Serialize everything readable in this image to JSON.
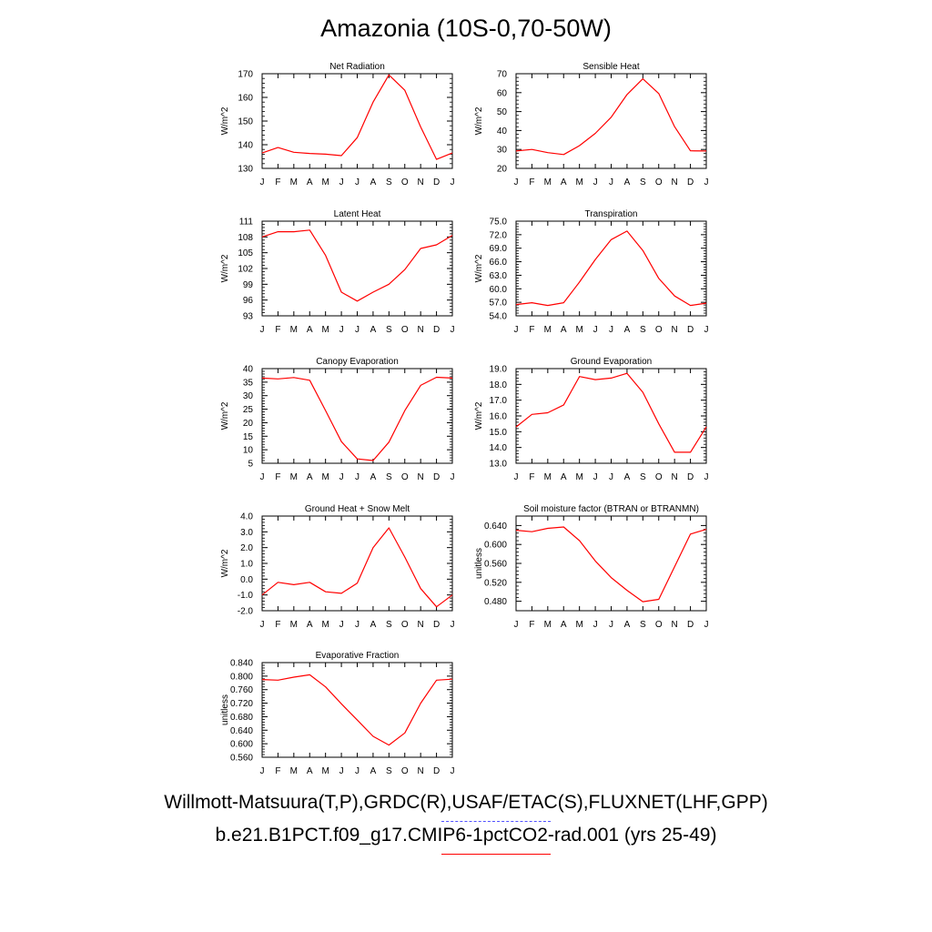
{
  "figure": {
    "title": "Amazonia (10S-0,70-50W)",
    "captions": {
      "obs": "Willmott-Matsuura(T,P),GRDC(R),USAF/ETAC(S),FLUXNET(LHF,GPP)",
      "model": "b.e21.B1PCT.f09_g17.CMIP6-1pctCO2-rad.001 (yrs 25-49)"
    },
    "colors": {
      "model_line": "#ff0000",
      "obs_line": "#5050ff",
      "axis": "#000000"
    }
  },
  "chart_data": [
    {
      "type": "line",
      "title": "Net Radiation",
      "ylabel": "W/m^2",
      "xlabel": "",
      "x": [
        "J",
        "F",
        "M",
        "A",
        "M",
        "J",
        "J",
        "A",
        "S",
        "O",
        "N",
        "D",
        "J"
      ],
      "ylim": [
        130,
        170
      ],
      "yticks": [
        "130",
        "140",
        "150",
        "160",
        "170"
      ],
      "series": [
        {
          "values": [
            136.5,
            138.8,
            136.8,
            136.3,
            136.0,
            135.4,
            143.0,
            158.0,
            169.5,
            163.0,
            147.5,
            133.8,
            136.5
          ]
        }
      ]
    },
    {
      "type": "line",
      "title": "Sensible Heat",
      "ylabel": "W/m^2",
      "xlabel": "",
      "x": [
        "J",
        "F",
        "M",
        "A",
        "M",
        "J",
        "J",
        "A",
        "S",
        "O",
        "N",
        "D",
        "J"
      ],
      "ylim": [
        20,
        70
      ],
      "yticks": [
        "20",
        "30",
        "40",
        "50",
        "60",
        "70"
      ],
      "series": [
        {
          "values": [
            29.2,
            30.0,
            28.3,
            27.3,
            32.0,
            38.5,
            47.0,
            59.0,
            67.3,
            59.5,
            42.0,
            29.3,
            29.2
          ]
        }
      ]
    },
    {
      "type": "line",
      "title": "Latent Heat",
      "ylabel": "W/m^2",
      "xlabel": "",
      "x": [
        "J",
        "F",
        "M",
        "A",
        "M",
        "J",
        "J",
        "A",
        "S",
        "O",
        "N",
        "D",
        "J"
      ],
      "ylim": [
        93,
        111
      ],
      "yticks": [
        "93",
        "96",
        "99",
        "102",
        "105",
        "108",
        "111"
      ],
      "series": [
        {
          "values": [
            108.0,
            109.0,
            109.0,
            109.3,
            104.5,
            97.5,
            95.8,
            97.5,
            99.0,
            101.8,
            105.8,
            106.5,
            108.3
          ]
        }
      ]
    },
    {
      "type": "line",
      "title": "Transpiration",
      "ylabel": "W/m^2",
      "xlabel": "",
      "x": [
        "J",
        "F",
        "M",
        "A",
        "M",
        "J",
        "J",
        "A",
        "S",
        "O",
        "N",
        "D",
        "J"
      ],
      "ylim": [
        54,
        75
      ],
      "yticks": [
        "54.0",
        "57.0",
        "60.0",
        "63.0",
        "66.0",
        "69.0",
        "72.0",
        "75.0"
      ],
      "series": [
        {
          "values": [
            56.5,
            56.9,
            56.3,
            56.9,
            61.5,
            66.5,
            70.9,
            72.8,
            68.5,
            62.3,
            58.4,
            56.3,
            56.8
          ]
        }
      ]
    },
    {
      "type": "line",
      "title": "Canopy Evaporation",
      "ylabel": "W/m^2",
      "xlabel": "",
      "x": [
        "J",
        "F",
        "M",
        "A",
        "M",
        "J",
        "J",
        "A",
        "S",
        "O",
        "N",
        "D",
        "J"
      ],
      "ylim": [
        5,
        40
      ],
      "yticks": [
        "5",
        "10",
        "15",
        "20",
        "25",
        "30",
        "35",
        "40"
      ],
      "series": [
        {
          "values": [
            36.5,
            36.2,
            36.7,
            35.7,
            24.5,
            13.0,
            6.6,
            6.0,
            12.8,
            24.5,
            33.8,
            36.8,
            36.5
          ]
        }
      ]
    },
    {
      "type": "line",
      "title": "Ground Evaporation",
      "ylabel": "W/m^2",
      "xlabel": "",
      "x": [
        "J",
        "F",
        "M",
        "A",
        "M",
        "J",
        "J",
        "A",
        "S",
        "O",
        "N",
        "D",
        "J"
      ],
      "ylim": [
        13,
        19
      ],
      "yticks": [
        "13.0",
        "14.0",
        "15.0",
        "16.0",
        "17.0",
        "18.0",
        "19.0"
      ],
      "series": [
        {
          "values": [
            15.3,
            16.1,
            16.2,
            16.7,
            18.5,
            18.3,
            18.4,
            18.7,
            17.5,
            15.5,
            13.7,
            13.7,
            15.3
          ]
        }
      ]
    },
    {
      "type": "line",
      "title": "Ground Heat + Snow Melt",
      "ylabel": "W/m^2",
      "xlabel": "",
      "x": [
        "J",
        "F",
        "M",
        "A",
        "M",
        "J",
        "J",
        "A",
        "S",
        "O",
        "N",
        "D",
        "J"
      ],
      "ylim": [
        -2,
        4
      ],
      "yticks": [
        "-2.0",
        "-1.0",
        "0.0",
        "1.0",
        "2.0",
        "3.0",
        "4.0"
      ],
      "series": [
        {
          "values": [
            -1.0,
            -0.2,
            -0.35,
            -0.2,
            -0.8,
            -0.9,
            -0.25,
            2.0,
            3.25,
            1.4,
            -0.6,
            -1.75,
            -1.0
          ]
        }
      ]
    },
    {
      "type": "line",
      "title": "Soil moisture factor (BTRAN or BTRANMN)",
      "ylabel": "unitless",
      "xlabel": "",
      "x": [
        "J",
        "F",
        "M",
        "A",
        "M",
        "J",
        "J",
        "A",
        "S",
        "O",
        "N",
        "D",
        "J"
      ],
      "ylim": [
        0.46,
        0.66
      ],
      "yticks": [
        "0.480",
        "0.520",
        "0.560",
        "0.600",
        "0.640"
      ],
      "series": [
        {
          "values": [
            0.63,
            0.627,
            0.634,
            0.637,
            0.608,
            0.565,
            0.53,
            0.503,
            0.479,
            0.484,
            0.553,
            0.622,
            0.632
          ]
        }
      ]
    },
    {
      "type": "line",
      "title": "Evaporative Fraction",
      "ylabel": "unitless",
      "xlabel": "",
      "x": [
        "J",
        "F",
        "M",
        "A",
        "M",
        "J",
        "J",
        "A",
        "S",
        "O",
        "N",
        "D",
        "J"
      ],
      "ylim": [
        0.56,
        0.84
      ],
      "yticks": [
        "0.560",
        "0.600",
        "0.640",
        "0.680",
        "0.720",
        "0.760",
        "0.800",
        "0.840"
      ],
      "series": [
        {
          "values": [
            0.79,
            0.788,
            0.797,
            0.804,
            0.768,
            0.718,
            0.67,
            0.622,
            0.596,
            0.632,
            0.72,
            0.788,
            0.791
          ]
        }
      ]
    }
  ]
}
